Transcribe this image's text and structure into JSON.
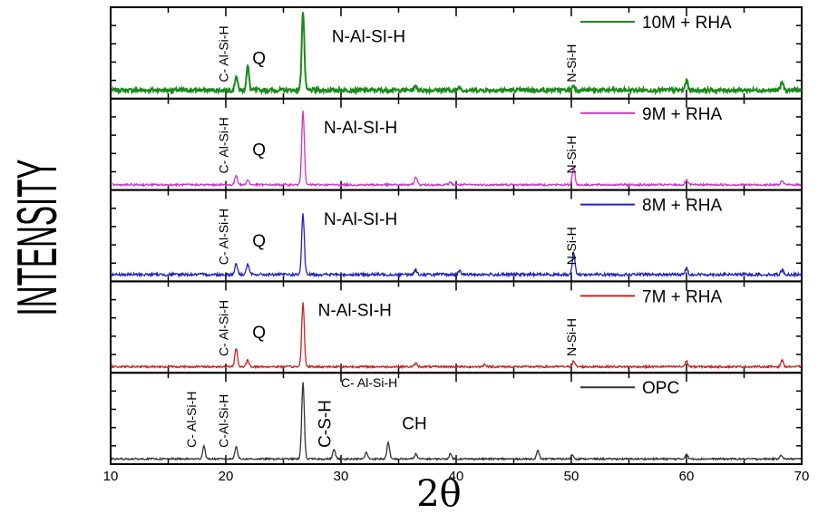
{
  "chart_data": {
    "type": "line",
    "xlabel": "2θ",
    "ylabel": "INTENSITY",
    "xlim": [
      10,
      70
    ],
    "x_ticks": [
      "10",
      "20",
      "30",
      "40",
      "50",
      "60",
      "70"
    ],
    "grid": false,
    "legend_position": "top-right of each panel",
    "series": [
      {
        "name": "10M + RHA",
        "color": "#1a8a1a",
        "baseline": 0.06,
        "noise": 0.025,
        "peaks": [
          [
            20.9,
            0.18
          ],
          [
            21.9,
            0.3
          ],
          [
            26.7,
            0.98
          ],
          [
            36.5,
            0.05
          ],
          [
            40.3,
            0.04
          ],
          [
            50.2,
            0.06
          ],
          [
            60.0,
            0.12
          ],
          [
            68.3,
            0.1
          ]
        ],
        "annotations": [
          {
            "text": "C- Al-Si-H",
            "x": 20.2,
            "vertical": true,
            "size": "small"
          },
          {
            "text": "Q",
            "x": 22.3,
            "vertical": false,
            "size": "big"
          },
          {
            "text": "N-Al-SI-H",
            "x": 29.2,
            "vertical": false,
            "size": "big"
          },
          {
            "text": "N-Si-H",
            "x": 50.4,
            "vertical": true,
            "size": "small"
          }
        ]
      },
      {
        "name": "9M + RHA",
        "color": "#cc33cc",
        "baseline": 0.02,
        "noise": 0.012,
        "peaks": [
          [
            20.9,
            0.12
          ],
          [
            21.9,
            0.06
          ],
          [
            26.7,
            0.93
          ],
          [
            36.5,
            0.1
          ],
          [
            39.5,
            0.03
          ],
          [
            50.2,
            0.22
          ],
          [
            60.0,
            0.05
          ],
          [
            68.3,
            0.05
          ]
        ],
        "annotations": [
          {
            "text": "C- Al-Si-H",
            "x": 20.2,
            "vertical": true,
            "size": "small"
          },
          {
            "text": "Q",
            "x": 22.3,
            "vertical": false,
            "size": "big"
          },
          {
            "text": "N-Al-SI-H",
            "x": 28.5,
            "vertical": false,
            "size": "big"
          },
          {
            "text": "N-Si-H",
            "x": 50.4,
            "vertical": true,
            "size": "small"
          }
        ]
      },
      {
        "name": "8M + RHA",
        "color": "#2222bb",
        "baseline": 0.04,
        "noise": 0.018,
        "peaks": [
          [
            20.9,
            0.14
          ],
          [
            21.9,
            0.13
          ],
          [
            26.7,
            0.75
          ],
          [
            36.5,
            0.06
          ],
          [
            40.3,
            0.04
          ],
          [
            50.2,
            0.28
          ],
          [
            60.0,
            0.08
          ],
          [
            68.3,
            0.06
          ]
        ],
        "annotations": [
          {
            "text": "C- Al-Si-H",
            "x": 20.2,
            "vertical": true,
            "size": "small"
          },
          {
            "text": "Q",
            "x": 22.3,
            "vertical": false,
            "size": "big"
          },
          {
            "text": "N-Al-SI-H",
            "x": 28.5,
            "vertical": false,
            "size": "big"
          },
          {
            "text": "N-Si-H",
            "x": 50.4,
            "vertical": true,
            "size": "small"
          }
        ]
      },
      {
        "name": "7M + RHA",
        "color": "#d02020",
        "baseline": 0.03,
        "noise": 0.012,
        "peaks": [
          [
            20.9,
            0.23
          ],
          [
            21.9,
            0.08
          ],
          [
            26.7,
            0.8
          ],
          [
            36.5,
            0.04
          ],
          [
            42.5,
            0.03
          ],
          [
            50.2,
            0.07
          ],
          [
            60.0,
            0.07
          ],
          [
            68.3,
            0.08
          ]
        ],
        "annotations": [
          {
            "text": "C- Al-Si-H",
            "x": 20.2,
            "vertical": true,
            "size": "small"
          },
          {
            "text": "Q",
            "x": 22.3,
            "vertical": false,
            "size": "big"
          },
          {
            "text": "N-Al-SI-H",
            "x": 28.0,
            "vertical": false,
            "size": "big"
          },
          {
            "text": "N-Si-H",
            "x": 50.4,
            "vertical": true,
            "size": "small"
          }
        ]
      },
      {
        "name": "OPC",
        "color": "#333333",
        "baseline": 0.02,
        "noise": 0.01,
        "peaks": [
          [
            18.1,
            0.16
          ],
          [
            20.9,
            0.16
          ],
          [
            26.7,
            0.95
          ],
          [
            29.4,
            0.12
          ],
          [
            32.2,
            0.08
          ],
          [
            34.1,
            0.2
          ],
          [
            36.5,
            0.06
          ],
          [
            39.5,
            0.06
          ],
          [
            47.1,
            0.1
          ],
          [
            50.1,
            0.05
          ],
          [
            60.0,
            0.06
          ],
          [
            68.2,
            0.05
          ]
        ],
        "annotations": [
          {
            "text": "C- Al-Si-H",
            "x": 17.4,
            "vertical": true,
            "size": "small"
          },
          {
            "text": "C-Al-Si-H",
            "x": 20.2,
            "vertical": true,
            "size": "small"
          },
          {
            "text": "C- Al-Si-H",
            "x": 30.0,
            "vertical": false,
            "size": "small"
          },
          {
            "text": "C-S-H",
            "x": 29.1,
            "vertical": true,
            "size": "big"
          },
          {
            "text": "CH",
            "x": 35.3,
            "vertical": false,
            "size": "big"
          }
        ]
      }
    ]
  }
}
